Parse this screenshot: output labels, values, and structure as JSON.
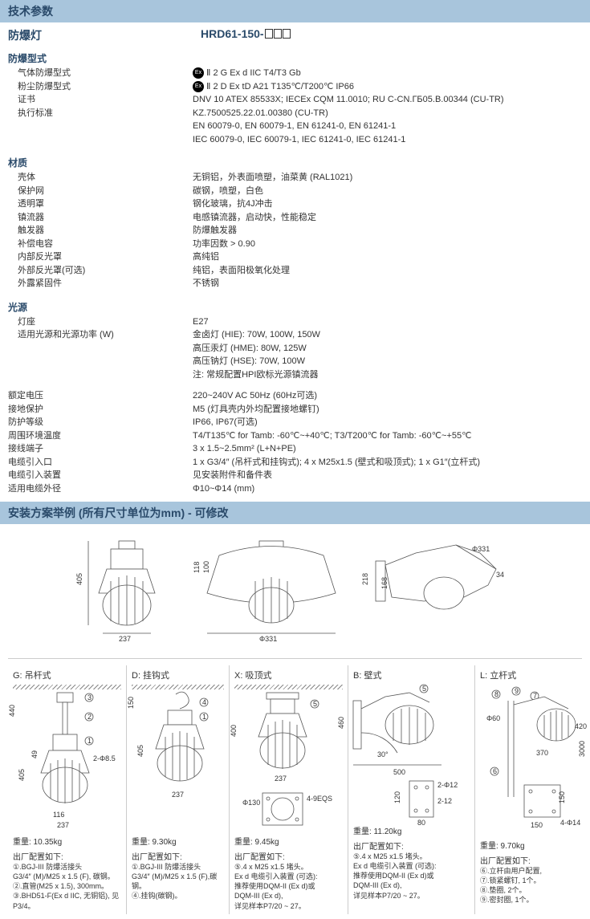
{
  "header": {
    "title": "技术参数"
  },
  "product": {
    "name_left": "防爆灯",
    "model": "HRD61-150-"
  },
  "sections": {
    "explosion": {
      "label": "防爆型式",
      "rows": [
        {
          "l": "气体防爆型式",
          "r": "Ⅱ 2 G Ex d IIC T4/T3 Gb",
          "badge": true
        },
        {
          "l": "粉尘防爆型式",
          "r": "Ⅱ 2 D Ex tD A21 T135℃/T200℃ IP66",
          "badge": true
        },
        {
          "l": "证书",
          "r": "DNV 10 ATEX 85533X;  IECEx CQM 11.0010; RU C-CN.ГБ05.B.00344 (CU-TR)"
        },
        {
          "l": "执行标准",
          "r": "KZ.7500525.22.01.00380 (CU-TR)"
        },
        {
          "l": "",
          "r": "EN 60079-0, EN 60079-1, EN 61241-0, EN 61241-1"
        },
        {
          "l": "",
          "r": "IEC 60079-0, IEC 60079-1, IEC 61241-0, IEC 61241-1"
        }
      ]
    },
    "material": {
      "label": "材质",
      "rows": [
        {
          "l": "壳体",
          "r": "无铜铝，外表面喷塑，油菜黄 (RAL1021)"
        },
        {
          "l": "保护网",
          "r": "碳钢，喷塑，白色"
        },
        {
          "l": "透明罩",
          "r": "钢化玻璃，抗4J冲击"
        },
        {
          "l": "镇流器",
          "r": "电感镇流器，启动快，性能稳定"
        },
        {
          "l": "触发器",
          "r": "防爆触发器"
        },
        {
          "l": "补偿电容",
          "r": "功率因数 > 0.90"
        },
        {
          "l": "内部反光罩",
          "r": "高纯铝"
        },
        {
          "l": "外部反光罩(可选)",
          "r": "纯铝，表面阳极氧化处理"
        },
        {
          "l": "外露紧固件",
          "r": "不锈钢"
        }
      ]
    },
    "light": {
      "label": "光源",
      "rows": [
        {
          "l": "灯座",
          "r": "E27"
        },
        {
          "l": "适用光源和光源功率 (W)",
          "r": "金卤灯 (HIE): 70W, 100W, 150W"
        },
        {
          "l": "",
          "r": "高压汞灯 (HME): 80W, 125W"
        },
        {
          "l": "",
          "r": "高压钠灯 (HSE): 70W, 100W"
        },
        {
          "l": "",
          "r": "注: 常规配置HPI欧标光源镇流器"
        }
      ]
    },
    "elec": {
      "rows": [
        {
          "l": "额定电压",
          "r": "220~240V AC  50Hz (60Hz可选)"
        },
        {
          "l": "接地保护",
          "r": "M5 (灯具壳内外均配置接地螺钉)"
        },
        {
          "l": "防护等级",
          "r": "IP66, IP67(可选)"
        },
        {
          "l": "周围环境温度",
          "r": "T4/T135℃  for Tamb: -60℃~+40℃;  T3/T200℃  for Tamb: -60℃~+55℃"
        },
        {
          "l": "接线端子",
          "r": "3 x 1.5~2.5mm²  (L+N+PE)"
        },
        {
          "l": "电缆引入口",
          "r": "1 x G3/4″  (吊杆式和挂钩式); 4 x M25x1.5 (壁式和吸顶式); 1 x G1″(立杆式)"
        },
        {
          "l": "电缆引入装置",
          "r": "见安装附件和备件表"
        },
        {
          "l": "适用电缆外径",
          "r": "Φ10~Φ14 (mm)"
        }
      ]
    }
  },
  "install_header": "安装方案举例 (所有尺寸单位为mm) - 可修改",
  "top_dims": {
    "h1": "405",
    "w1": "237",
    "h2a": "118",
    "h2b": "100",
    "d2": "Φ331",
    "h3a": "218",
    "h3b": "168",
    "d3": "Φ331",
    "d3b": "34"
  },
  "mounts": {
    "g": {
      "title": "G:  吊杆式",
      "weight": "重量:   10.35kg",
      "head": "出厂配置如下:",
      "lines": [
        "①.BGJ-III 防爆活接头",
        "   G3/4″ (M)/M25 x 1.5 (F), 碳钢。",
        "②.直管(M25 x 1.5),  300mm。",
        "③.BHD51-F(Ex d IIC, 无铜铝), 见",
        "   P3/4。"
      ]
    },
    "d": {
      "title": "D:  挂钩式",
      "weight": "重量:   9.30kg",
      "head": "出厂配置如下:",
      "lines": [
        "①.BGJ-III 防爆活接头",
        "   G3/4″ (M)/M25 x 1.5 (F),碳钢。",
        "④.挂钩(碳钢)。"
      ]
    },
    "x": {
      "title": "X:  吸顶式",
      "weight": "重量:   9.45kg",
      "head": "出厂配置如下:",
      "lines": [
        "⑤.4 x M25 x1.5 堵头。",
        "   Ex d 电缆引入装置 (可选):",
        "   推荐使用DQM-II (Ex d)或",
        "   DQM-III (Ex d),",
        "   详见样本P7/20 ~ 27。"
      ]
    },
    "b": {
      "title": "B:  壁式",
      "weight": "重量:   11.20kg",
      "head": "出厂配置如下:",
      "lines": [
        "⑤.4 x M25 x1.5 堵头。",
        "   Ex d 电缆引入装置 (可选):",
        "   推荐使用DQM-II (Ex d)或",
        "   DQM-III (Ex d),",
        "   详见样本P7/20 ~ 27。"
      ]
    },
    "l": {
      "title": "L:  立杆式",
      "weight": "重量:   9.70kg",
      "head": "出厂配置如下:",
      "lines": [
        "⑥.立杆由用户配置,",
        "⑦.锁紧螺钉, 1个。",
        "⑧.垫圈, 2个。",
        "⑨.密封圈, 1个。"
      ]
    }
  },
  "colors": {
    "header_bg": "#a8c5dc",
    "header_text": "#2a4a6a"
  }
}
